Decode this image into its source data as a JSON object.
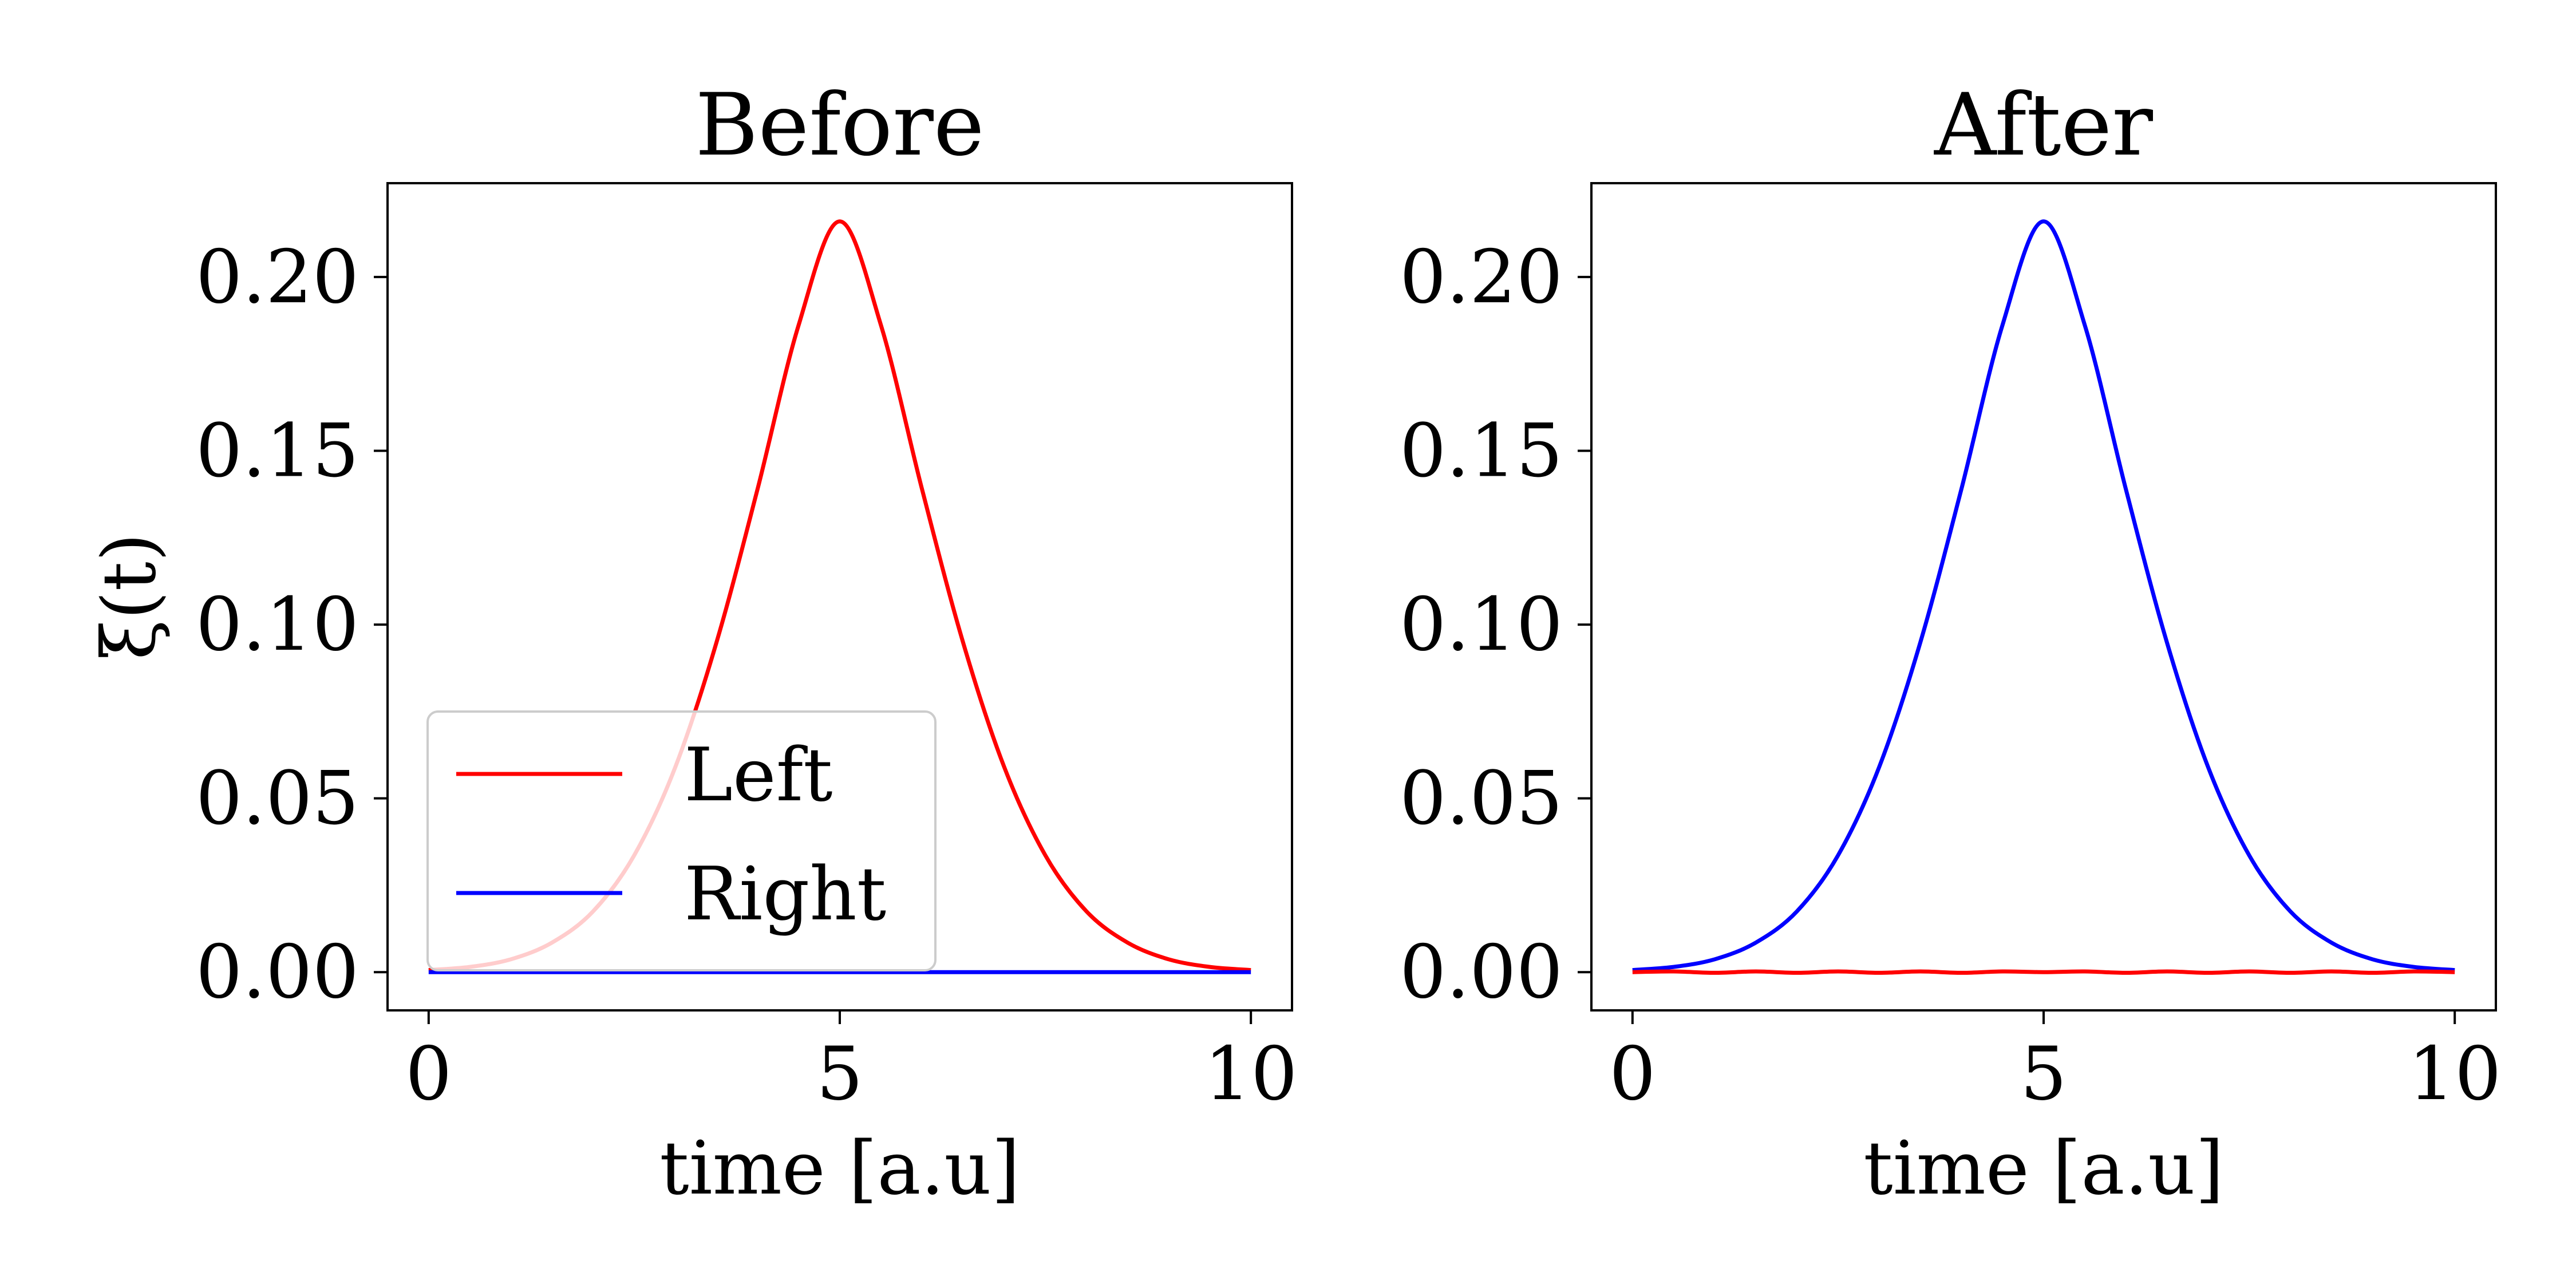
{
  "figure": {
    "background": "#ffffff",
    "colors": {
      "left": "#ff0000",
      "right": "#0000ff",
      "axes": "#000000",
      "legend_frame": "#cccccc"
    }
  },
  "legend": {
    "placement": "lower-left",
    "entries": [
      {
        "label": "Left",
        "color": "#ff0000"
      },
      {
        "label": "Right",
        "color": "#0000ff"
      }
    ]
  },
  "chart_data": [
    {
      "type": "line",
      "title": "Before",
      "xlabel": "time [a.u]",
      "ylabel": "ξ(t)",
      "xlim": [
        -0.5,
        10.5
      ],
      "ylim": [
        -0.011,
        0.227
      ],
      "xticks": [
        0,
        5,
        10
      ],
      "xtick_labels": [
        "0",
        "5",
        "10"
      ],
      "yticks": [
        0.0,
        0.05,
        0.1,
        0.15,
        0.2
      ],
      "ytick_labels": [
        "0.00",
        "0.05",
        "0.10",
        "0.15",
        "0.20"
      ],
      "grid": false,
      "legend": "lower-left",
      "x": [
        0,
        0.5,
        1,
        1.5,
        2,
        2.5,
        3,
        3.5,
        4,
        4.5,
        5,
        5.5,
        6,
        6.5,
        7,
        7.5,
        8,
        8.5,
        9,
        9.5,
        10
      ],
      "series": [
        {
          "name": "Left",
          "color": "#ff0000",
          "values": [
            0.0006,
            0.0015,
            0.0037,
            0.0085,
            0.0175,
            0.0336,
            0.059,
            0.0948,
            0.139,
            0.1862,
            0.216,
            0.1862,
            0.139,
            0.0948,
            0.059,
            0.0336,
            0.0175,
            0.0085,
            0.0037,
            0.0015,
            0.0006
          ]
        },
        {
          "name": "Right",
          "color": "#0000ff",
          "values": [
            0,
            0,
            0,
            0,
            0,
            0,
            0,
            0,
            0,
            0,
            0,
            0,
            0,
            0,
            0,
            0,
            0,
            0,
            0,
            0,
            0
          ]
        }
      ]
    },
    {
      "type": "line",
      "title": "After",
      "xlabel": "time [a.u]",
      "ylabel": "",
      "xlim": [
        -0.5,
        10.5
      ],
      "ylim": [
        -0.011,
        0.227
      ],
      "xticks": [
        0,
        5,
        10
      ],
      "xtick_labels": [
        "0",
        "5",
        "10"
      ],
      "yticks": [
        0.0,
        0.05,
        0.1,
        0.15,
        0.2
      ],
      "ytick_labels": [
        "0.00",
        "0.05",
        "0.10",
        "0.15",
        "0.20"
      ],
      "grid": false,
      "x": [
        0,
        0.5,
        1,
        1.5,
        2,
        2.5,
        3,
        3.5,
        4,
        4.5,
        5,
        5.5,
        6,
        6.5,
        7,
        7.5,
        8,
        8.5,
        9,
        9.5,
        10
      ],
      "series": [
        {
          "name": "Right",
          "color": "#0000ff",
          "values": [
            0.0006,
            0.0015,
            0.0037,
            0.0085,
            0.0175,
            0.0336,
            0.059,
            0.0948,
            0.139,
            0.1862,
            0.216,
            0.1862,
            0.139,
            0.0948,
            0.059,
            0.0336,
            0.0175,
            0.0085,
            0.0037,
            0.0015,
            0.0006
          ]
        },
        {
          "name": "Left",
          "color": "#ff0000",
          "values": [
            0,
            0.0002,
            -0.0002,
            0.0002,
            -0.0002,
            0.0002,
            -0.0002,
            0.0002,
            -0.0002,
            0.0002,
            0,
            0.0002,
            -0.0002,
            0.0002,
            -0.0002,
            0.0002,
            -0.0002,
            0.0002,
            -0.0002,
            0.0002,
            0
          ]
        }
      ]
    }
  ]
}
